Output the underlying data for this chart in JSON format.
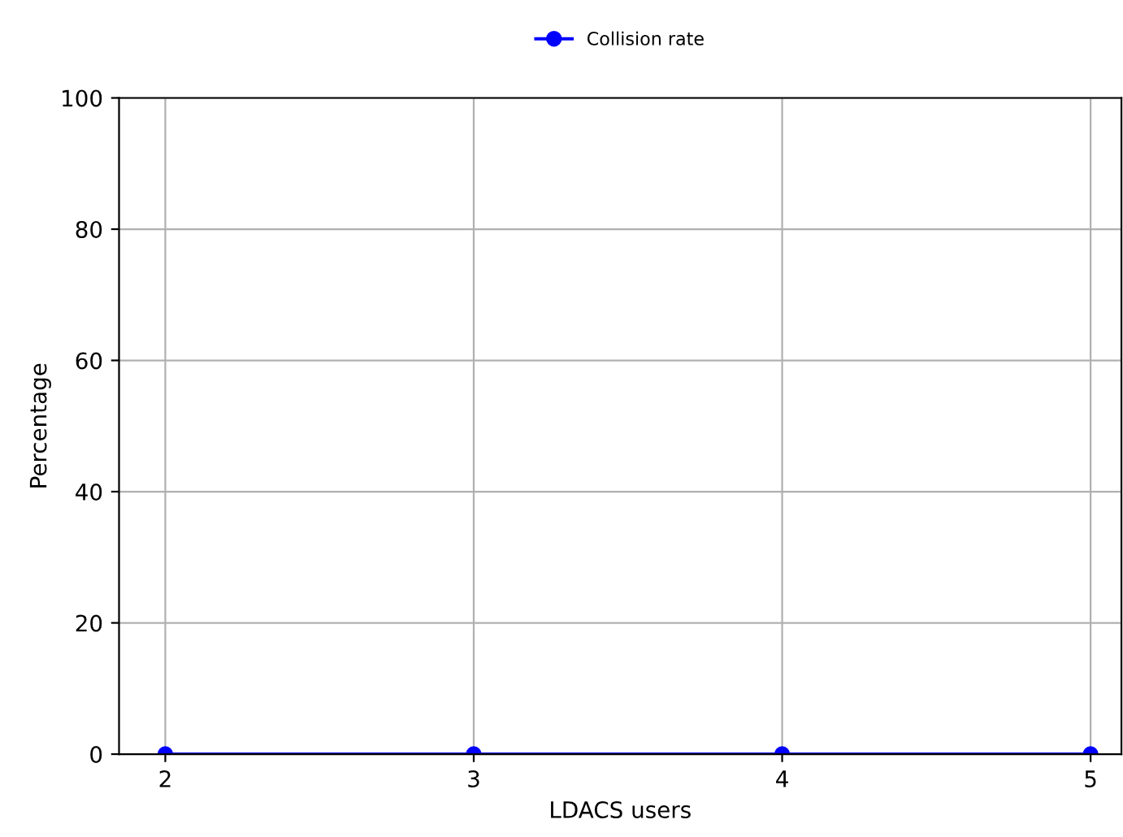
{
  "chart_data": {
    "type": "line",
    "xlabel": "LDACS users",
    "ylabel": "Percentage",
    "x": [
      2,
      3,
      4,
      5
    ],
    "series": [
      {
        "name": "Collision rate",
        "color": "#0000ff",
        "values": [
          0,
          0,
          0,
          0
        ]
      }
    ],
    "xlim": [
      1.85,
      5.1
    ],
    "xticks": [
      2,
      3,
      4,
      5
    ],
    "ylim": [
      0,
      100
    ],
    "yticks": [
      0,
      20,
      40,
      60,
      80,
      100
    ],
    "grid": true,
    "legend": "top",
    "marker": "circle",
    "line_style": "solid"
  }
}
